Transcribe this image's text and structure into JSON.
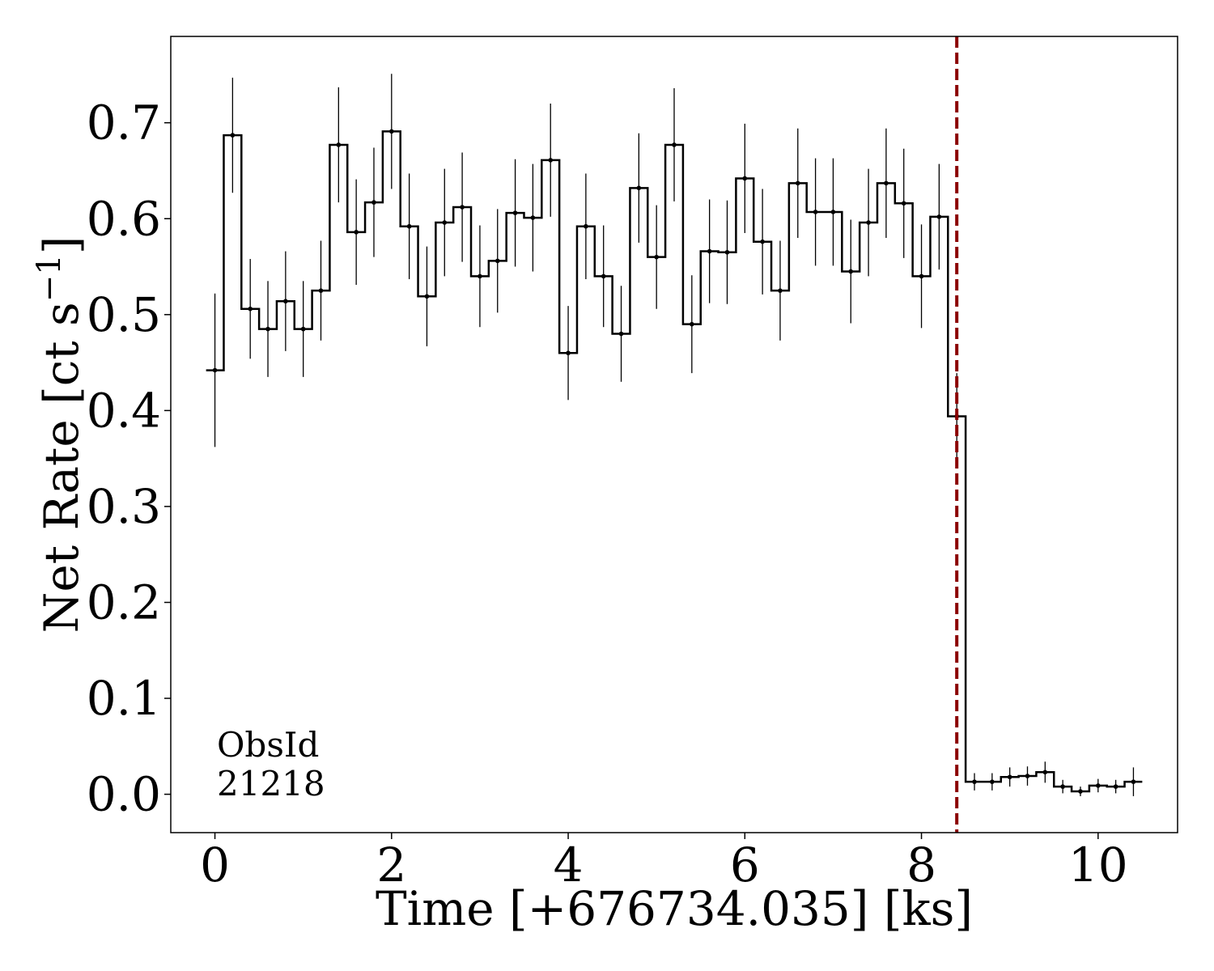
{
  "chart_data": {
    "type": "line",
    "style": "step-with-errorbars",
    "xlabel": "Time [+676734.035] [ks]",
    "ylabel": "Net Rate [ct s",
    "ylabel_sup": "−1",
    "ylabel_close": "]",
    "xlim": [
      -0.5,
      10.9
    ],
    "ylim": [
      -0.04,
      0.79
    ],
    "x_ticks": [
      "0",
      "2",
      "4",
      "6",
      "8",
      "10"
    ],
    "y_ticks": [
      "0.0",
      "0.1",
      "0.2",
      "0.3",
      "0.4",
      "0.5",
      "0.6",
      "0.7"
    ],
    "annotation": [
      "ObsId",
      "21218"
    ],
    "vline": {
      "x": 8.4,
      "color": "#8b0000",
      "style": "dashed"
    },
    "bin_width": 0.2,
    "x": [
      0.0,
      0.2,
      0.4,
      0.6,
      0.8,
      1.0,
      1.2,
      1.4,
      1.6,
      1.8,
      2.0,
      2.2,
      2.4,
      2.6,
      2.8,
      3.0,
      3.2,
      3.4,
      3.6,
      3.8,
      4.0,
      4.2,
      4.4,
      4.6,
      4.8,
      5.0,
      5.2,
      5.4,
      5.6,
      5.8,
      6.0,
      6.2,
      6.4,
      6.6,
      6.8,
      7.0,
      7.2,
      7.4,
      7.6,
      7.8,
      8.0,
      8.2,
      8.4,
      8.6,
      8.8,
      9.0,
      9.2,
      9.4,
      9.6,
      9.8,
      10.0,
      10.2,
      10.4
    ],
    "y": [
      0.442,
      0.687,
      0.506,
      0.485,
      0.514,
      0.485,
      0.525,
      0.677,
      0.586,
      0.617,
      0.691,
      0.592,
      0.519,
      0.596,
      0.612,
      0.54,
      0.556,
      0.606,
      0.601,
      0.661,
      0.46,
      0.592,
      0.54,
      0.48,
      0.632,
      0.56,
      0.677,
      0.49,
      0.566,
      0.565,
      0.642,
      0.576,
      0.525,
      0.637,
      0.607,
      0.607,
      0.545,
      0.596,
      0.637,
      0.616,
      0.54,
      0.602,
      0.394,
      0.013,
      0.013,
      0.018,
      0.019,
      0.023,
      0.008,
      0.003,
      0.009,
      0.008,
      0.013
    ],
    "yerr": [
      0.08,
      0.06,
      0.052,
      0.05,
      0.052,
      0.05,
      0.052,
      0.06,
      0.055,
      0.057,
      0.06,
      0.055,
      0.052,
      0.056,
      0.057,
      0.053,
      0.054,
      0.056,
      0.056,
      0.059,
      0.049,
      0.055,
      0.053,
      0.05,
      0.057,
      0.054,
      0.059,
      0.051,
      0.054,
      0.054,
      0.057,
      0.055,
      0.052,
      0.057,
      0.056,
      0.056,
      0.054,
      0.056,
      0.057,
      0.057,
      0.054,
      0.055,
      0.045,
      0.009,
      0.009,
      0.01,
      0.01,
      0.011,
      0.007,
      0.005,
      0.007,
      0.007,
      0.015
    ],
    "line_color": "#000000"
  }
}
